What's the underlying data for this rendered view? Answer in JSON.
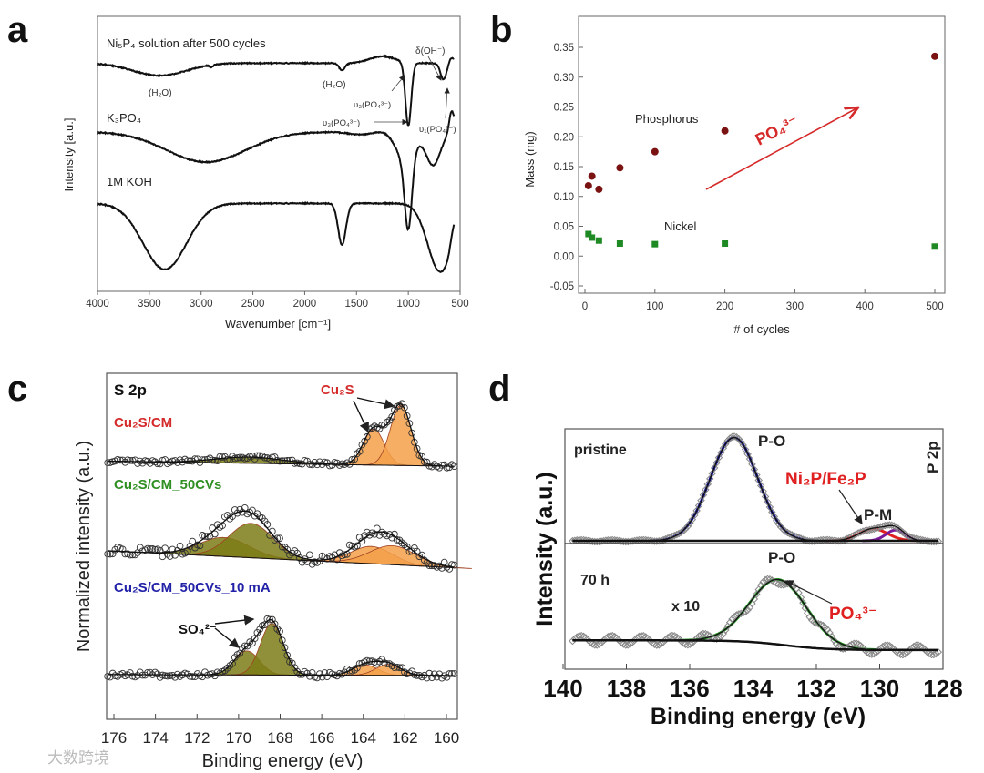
{
  "panel_labels": [
    "a",
    "b",
    "c",
    "d"
  ],
  "watermark": "大数跨境",
  "chart_data": [
    {
      "panel": "a",
      "type": "line",
      "title": "",
      "xlabel": "Wavenumber [cm⁻¹]",
      "ylabel": "Intensity [a.u.]",
      "xlim": [
        4000,
        500
      ],
      "ylim": [
        0,
        100
      ],
      "xticks": [
        4000,
        3500,
        3000,
        2500,
        2000,
        1500,
        1000,
        500
      ],
      "series": [
        {
          "name": "Ni₅P₄ solution after 500 cycles",
          "baseline": 83,
          "xmin": 560,
          "dips": [
            [
              3400,
              260,
              4.5
            ],
            [
              2900,
              15,
              0.8
            ],
            [
              1640,
              30,
              2.5
            ],
            [
              1000,
              28,
              23
            ],
            [
              660,
              30,
              6
            ]
          ],
          "bumps": [
            [
              1250,
              120,
              2.5
            ],
            [
              580,
              30,
              2
            ]
          ]
        },
        {
          "name": "K₃PO₄",
          "baseline": 58,
          "xmin": 560,
          "dips": [
            [
              2950,
              380,
              11
            ],
            [
              1450,
              120,
              1
            ],
            [
              1000,
              35,
              26
            ],
            [
              1030,
              90,
              10
            ],
            [
              760,
              70,
              12
            ]
          ],
          "bumps": [
            [
              1250,
              80,
              0.5
            ],
            [
              580,
              25,
              8
            ]
          ]
        },
        {
          "name": "1M KOH",
          "baseline": 32,
          "xmin": 560,
          "dips": [
            [
              3350,
              210,
              24
            ],
            [
              1640,
              38,
              15
            ],
            [
              690,
              120,
              25
            ]
          ],
          "bumps": [
            [
              560,
              30,
              6
            ]
          ]
        }
      ],
      "annotations": [
        "(H₂O)",
        "(H₂O)",
        "υ₃(PO₄³⁻)",
        "υ₃(PO₄³⁻)",
        "δ(OH⁻)",
        "υ₁(PO₄³⁻)"
      ]
    },
    {
      "panel": "b",
      "type": "scatter",
      "title": "",
      "xlabel": "# of cycles",
      "ylabel": "Mass (mg)",
      "xlim": [
        -10,
        515
      ],
      "ylim": [
        -0.05,
        0.35
      ],
      "xticks": [
        0,
        100,
        200,
        300,
        400,
        500
      ],
      "yticks": [
        "-0.05",
        "0.00",
        "0.05",
        "0.10",
        "0.15",
        "0.20",
        "0.25",
        "0.30",
        "0.35"
      ],
      "series": [
        {
          "name": "Phosphorus",
          "color": "#7a1212",
          "marker": "circle",
          "x": [
            5,
            10,
            20,
            50,
            100,
            200,
            500
          ],
          "y": [
            0.118,
            0.134,
            0.112,
            0.148,
            0.175,
            0.21,
            0.335
          ]
        },
        {
          "name": "Nickel",
          "color": "#1f8a24",
          "marker": "square",
          "x": [
            5,
            10,
            20,
            50,
            100,
            200,
            500
          ],
          "y": [
            0.037,
            0.031,
            0.026,
            0.021,
            0.02,
            0.021,
            0.016
          ]
        }
      ],
      "annotation": {
        "text": "PO₄³⁻",
        "color": "#d62a2a"
      }
    },
    {
      "panel": "c",
      "type": "line",
      "title": "S 2p",
      "xlabel": "Binding energy (eV)",
      "ylabel": "Normalized intensity (a.u.)",
      "xlim": [
        176.4,
        159.5
      ],
      "ylim": [
        0,
        1
      ],
      "xticks": [
        176,
        174,
        172,
        170,
        168,
        166,
        164,
        162,
        160
      ],
      "series": [
        {
          "name": "Cu₂S/CM",
          "color": "#d42a2a",
          "baseline": [
            0.75,
            0.735
          ],
          "noise": 0.006,
          "peaks": [
            {
              "center": 169.5,
              "sigma": 1.6,
              "height": 0.018,
              "color": "#7d7d18"
            },
            {
              "center": 163.5,
              "sigma": 0.5,
              "height": 0.105,
              "color": "#f5a04a"
            },
            {
              "center": 162.2,
              "sigma": 0.5,
              "height": 0.175,
              "color": "#f5a04a"
            }
          ]
        },
        {
          "name": "Cu₂S/CM_50CVs",
          "color": "#2f8f22",
          "baseline": [
            0.49,
            0.44
          ],
          "noise": 0.014,
          "peaks": [
            {
              "center": 170.7,
              "sigma": 1.2,
              "height": 0.055,
              "color": "#7d7d18"
            },
            {
              "center": 169.4,
              "sigma": 1.05,
              "height": 0.1,
              "color": "#7d7d18"
            },
            {
              "center": 163.6,
              "sigma": 1.0,
              "height": 0.05,
              "color": "#f5a04a"
            },
            {
              "center": 162.6,
              "sigma": 1.1,
              "height": 0.055,
              "color": "#f5a04a"
            }
          ]
        },
        {
          "name": "Cu₂S/CM_50CVs_10 mA",
          "color": "#2222a8",
          "baseline": [
            0.13,
            0.127
          ],
          "noise": 0.008,
          "peaks": [
            {
              "center": 169.6,
              "sigma": 0.6,
              "height": 0.07,
              "color": "#7d7d18"
            },
            {
              "center": 168.4,
              "sigma": 0.55,
              "height": 0.15,
              "color": "#7d7d18"
            },
            {
              "center": 163.9,
              "sigma": 0.6,
              "height": 0.03,
              "color": "#f5a04a"
            },
            {
              "center": 162.8,
              "sigma": 0.6,
              "height": 0.032,
              "color": "#f5a04a"
            }
          ]
        }
      ],
      "annotations": {
        "cu2s": "Cu₂S",
        "so4": "SO₄²⁻"
      }
    },
    {
      "panel": "d",
      "type": "line",
      "title": "P 2p",
      "xlabel": "Binding energy (eV)",
      "ylabel": "Intensity (a.u.)",
      "xlim": [
        140,
        128
      ],
      "ylim": [
        0,
        1
      ],
      "xticks": [
        140,
        138,
        136,
        134,
        132,
        130,
        128
      ],
      "series": [
        {
          "name": "pristine",
          "baseline": [
            0.534,
            0.534
          ],
          "noise": 0.004,
          "peaks": [
            {
              "center": 134.6,
              "sigma": 0.75,
              "height": 0.43,
              "color": "#1c1c9a",
              "label": "P-O"
            },
            {
              "center": 130.2,
              "sigma": 0.45,
              "height": 0.05,
              "color": "#e02020",
              "label": "Ni₂P/Fe₂P"
            },
            {
              "center": 129.5,
              "sigma": 0.3,
              "height": 0.045,
              "color": "#7a1a9a",
              "label": "P-M"
            }
          ]
        },
        {
          "name": "70 h",
          "scale": "x 10",
          "baseline": [
            0.12,
            0.08
          ],
          "noise": 0.02,
          "peaks": [
            {
              "center": 133.2,
              "sigma": 0.9,
              "height": 0.27,
              "color": "#2e9a2e",
              "label": "P-O"
            }
          ],
          "annotation": "PO₄³⁻"
        }
      ]
    }
  ]
}
